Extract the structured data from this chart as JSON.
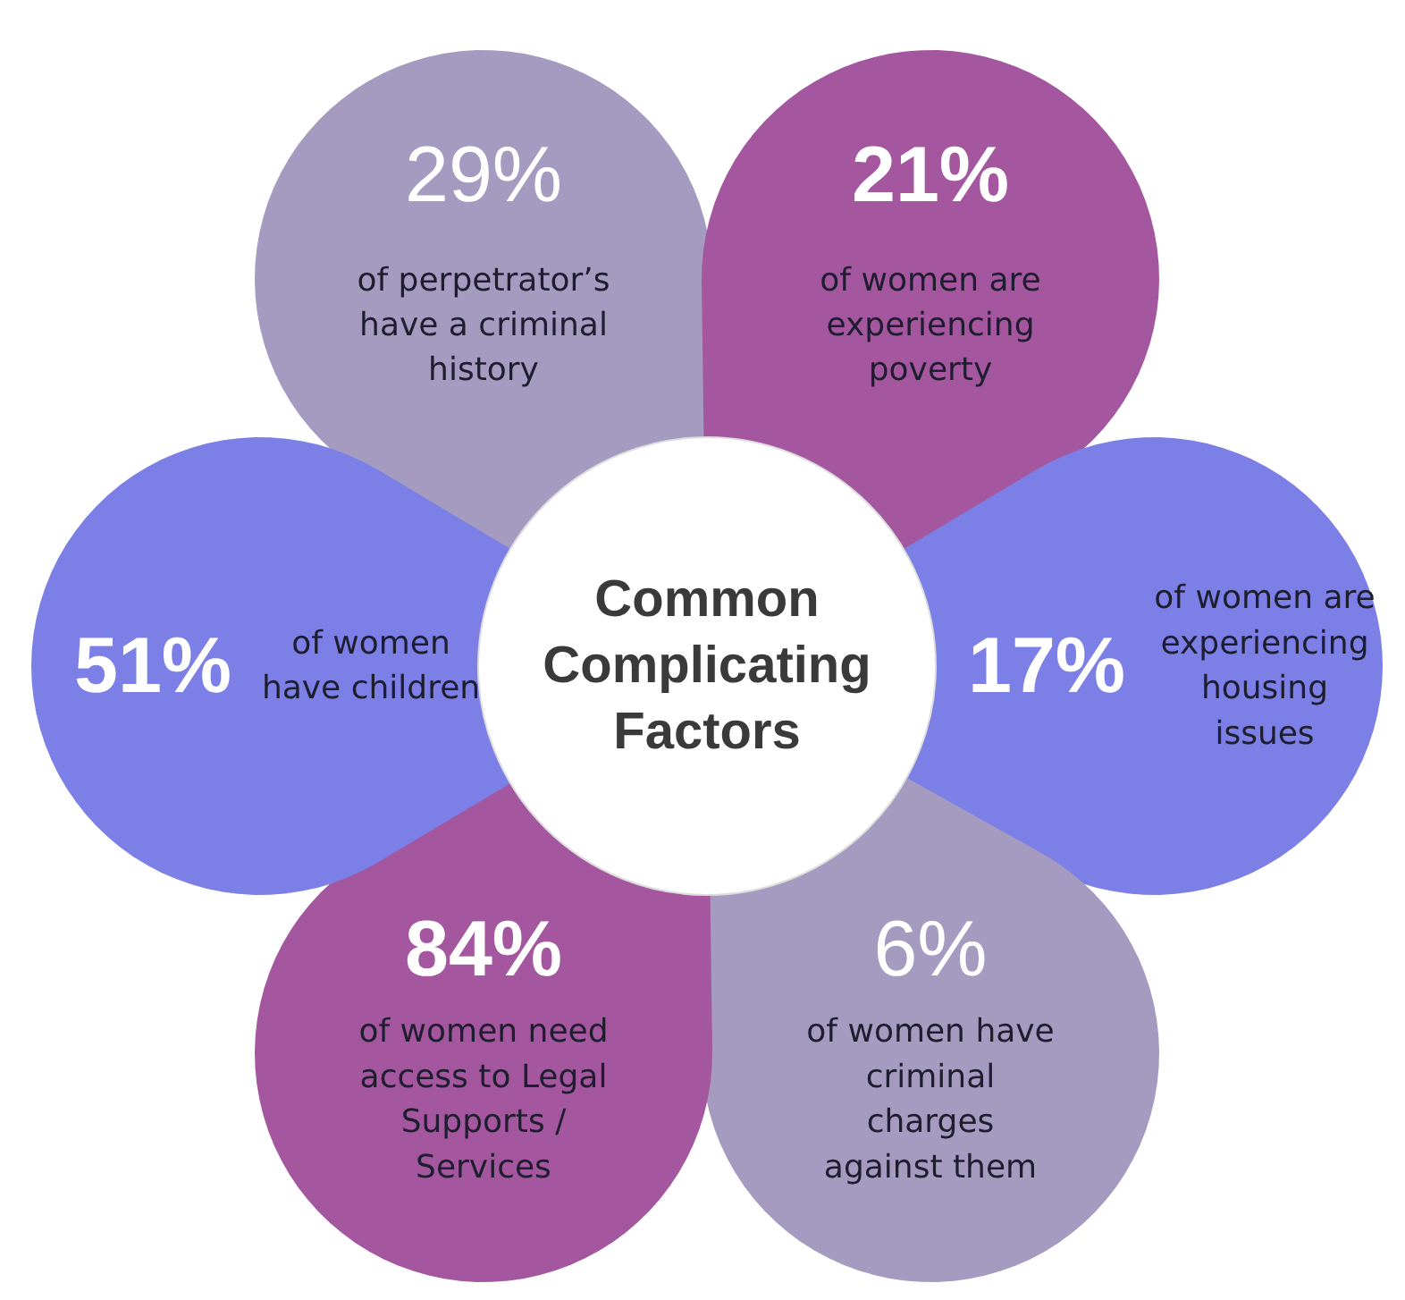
{
  "chart_data": {
    "type": "other",
    "title": "Common Complicating Factors",
    "categories": [
      "of perpetrator’s\nhave a criminal\nhistory",
      "of women are\nexperiencing\npoverty",
      "of women are\nexperiencing\nhousing\nissues",
      "of women have\ncriminal\ncharges\nagainst them",
      "of women need\naccess to Legal\nSupports /\nServices",
      "of women\nhave children"
    ],
    "values": [
      29,
      21,
      17,
      6,
      84,
      51
    ],
    "value_labels": [
      "29%",
      "21%",
      "17%",
      "6%",
      "84%",
      "51%"
    ],
    "colors": [
      "#a59bc0",
      "#a4569f",
      "#7b7fe6",
      "#a59bc0",
      "#a4569f",
      "#7b7fe6"
    ]
  }
}
